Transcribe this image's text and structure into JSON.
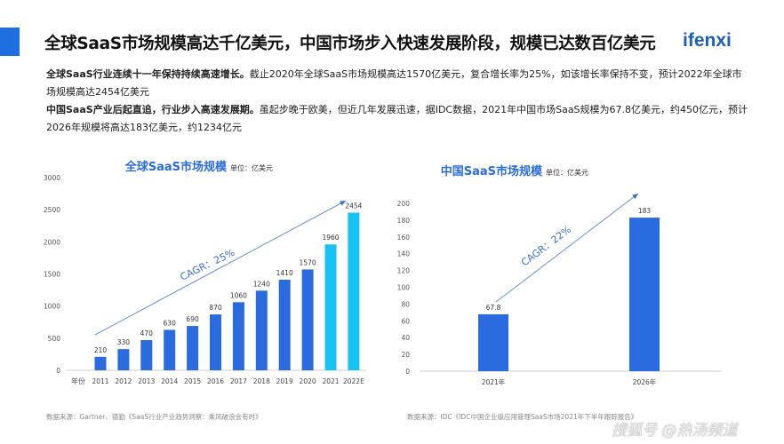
{
  "header": {
    "title": "全球SaaS市场规模高达千亿美元，中国市场步入快速发展阶段，规模已达数百亿美元",
    "logo": "ifenxi",
    "accent_color": "#1f6fe0"
  },
  "paragraphs": [
    {
      "bold": "全球SaaS行业连续十一年保持持续高速增长。",
      "text": "截止2020年全球SaaS市场规模高达1570亿美元，复合增长率为25%，如该增长率保持不变，预计2022年全球市场规模高达2454亿美元"
    },
    {
      "bold": "中国SaaS产业后起直追，行业步入高速发展期。",
      "text": "虽起步晚于欧美，但近几年发展迅速，据IDC数据，2021年中国市场SaaS规模为67.8亿美元，约450亿元，预计2026年规模将高达183亿美元，约1234亿元"
    }
  ],
  "chart_data": [
    {
      "type": "bar",
      "title": "全球SaaS市场规模",
      "unit": "单位：亿美元",
      "xlabel": "年份",
      "categories": [
        "2011",
        "2012",
        "2013",
        "2014",
        "2015",
        "2016",
        "2017",
        "2018",
        "2019",
        "2020",
        "2021",
        "2022E"
      ],
      "values": [
        210,
        330,
        470,
        630,
        690,
        870,
        1060,
        1240,
        1410,
        1570,
        1960,
        2454
      ],
      "colors": [
        "#2a6be0",
        "#2a6be0",
        "#2a6be0",
        "#2a6be0",
        "#2a6be0",
        "#2a6be0",
        "#2a6be0",
        "#2a6be0",
        "#2a6be0",
        "#2a6be0",
        "#17c3f2",
        "#17c3f2"
      ],
      "ylim": [
        0,
        3000
      ],
      "yticks": [
        0,
        500,
        1000,
        1500,
        2000,
        2500,
        3000
      ],
      "annotation": "CAGR：25%",
      "grid": false,
      "source": "数据来源：Gartner、德勤《SaaS行业产业趋势洞察：乘风破浪会有时》"
    },
    {
      "type": "bar",
      "title": "中国SaaS市场规模",
      "unit": "单位：亿美元",
      "categories": [
        "2021年",
        "2026年"
      ],
      "values": [
        67.8,
        183
      ],
      "colors": [
        "#2a6be0",
        "#2a6be0"
      ],
      "ylim": [
        0,
        200
      ],
      "yticks": [
        0,
        20,
        40,
        60,
        80,
        100,
        120,
        140,
        160,
        180,
        200
      ],
      "annotation": "CAGR：22%",
      "grid": false,
      "source": "数据来源：IDC《IDC中国企业级应用管理SaaS市场2021年下半年跟踪报告》"
    }
  ],
  "watermark": "搜狐号 @热汤频道"
}
